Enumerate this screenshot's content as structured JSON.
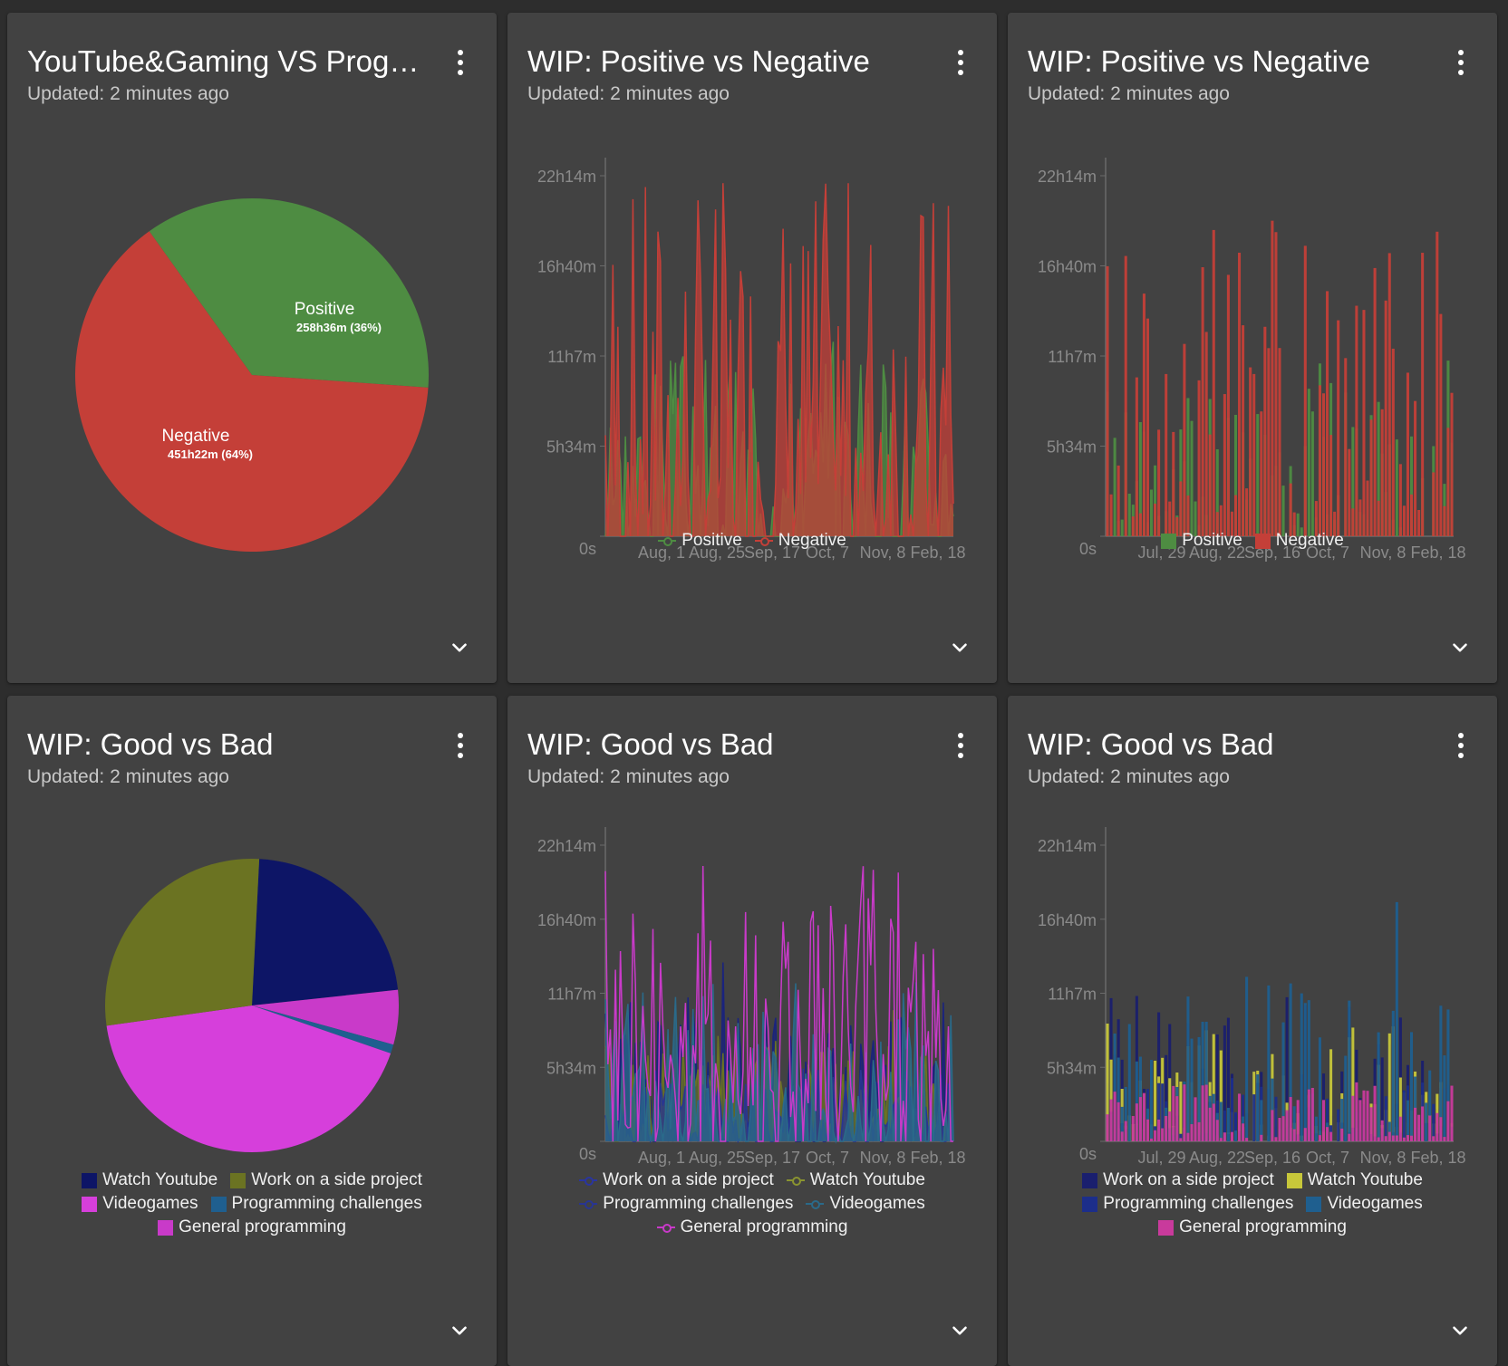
{
  "cards": [
    {
      "title": "YouTube&Gaming VS Progra...",
      "updated": "Updated: 2 minutes ago",
      "chart_kind": "pie",
      "pie_labels": [
        {
          "name": "Positive",
          "value": "258h36m (36%)"
        },
        {
          "name": "Negative",
          "value": "451h22m (64%)"
        }
      ],
      "chart_data": {
        "type": "pie",
        "slices": [
          {
            "name": "Positive",
            "value": 36,
            "color": "#4e8c42"
          },
          {
            "name": "Negative",
            "value": 64,
            "color": "#c43f38"
          }
        ]
      },
      "legend": []
    },
    {
      "title": "WIP: Positive vs Negative",
      "updated": "Updated: 2 minutes ago",
      "chart_kind": "area",
      "chart_data": {
        "type": "area",
        "x_ticks": [
          "Aug, 1",
          "Aug, 25",
          "Sep, 17",
          "Oct, 7",
          "Nov, 8",
          "Feb, 18"
        ],
        "y_ticks": [
          "0s",
          "5h34m",
          "11h7m",
          "16h40m",
          "22h14m"
        ],
        "ylim": [
          0,
          24
        ],
        "series": [
          {
            "name": "Positive",
            "color": "#4e8c42",
            "seed": 3,
            "scale": 0.55
          },
          {
            "name": "Negative",
            "color": "#c43f38",
            "seed": 7,
            "scale": 1.0
          }
        ]
      },
      "legend": [
        {
          "label": "Positive",
          "color": "#4e8c42",
          "style": "line"
        },
        {
          "label": "Negative",
          "color": "#c43f38",
          "style": "line"
        }
      ]
    },
    {
      "title": "WIP: Positive vs Negative",
      "updated": "Updated: 2 minutes ago",
      "chart_kind": "bar",
      "chart_data": {
        "type": "bar",
        "x_ticks": [
          "Jul, 29",
          "Aug, 22",
          "Sep, 16",
          "Oct, 7",
          "Nov, 8",
          "Feb, 18"
        ],
        "y_ticks": [
          "0s",
          "5h34m",
          "11h7m",
          "16h40m",
          "22h14m"
        ],
        "ylim": [
          0,
          24
        ],
        "series": [
          {
            "name": "Positive",
            "color": "#4e8c42",
            "seed": 11,
            "scale": 0.5
          },
          {
            "name": "Negative",
            "color": "#c43f38",
            "seed": 17,
            "scale": 0.9
          }
        ]
      },
      "legend": [
        {
          "label": "Positive",
          "color": "#4e8c42",
          "style": "box"
        },
        {
          "label": "Negative",
          "color": "#c43f38",
          "style": "box"
        }
      ]
    },
    {
      "title": "WIP: Good vs Bad",
      "updated": "Updated: 2 minutes ago",
      "chart_kind": "pie",
      "pie_labels": [],
      "chart_data": {
        "type": "pie",
        "slices": [
          {
            "name": "Watch Youtube",
            "value": 22.5,
            "color": "#0d1566"
          },
          {
            "name": "General programming",
            "value": 6.0,
            "color": "#c93ac9"
          },
          {
            "name": "Programming challenges",
            "value": 1.0,
            "color": "#1f5f8f"
          },
          {
            "name": "Videogames",
            "value": 42.5,
            "color": "#d63fdb"
          },
          {
            "name": "Work on a side project",
            "value": 28.0,
            "color": "#6b7322"
          }
        ]
      },
      "legend": [
        {
          "label": "Watch Youtube",
          "color": "#0d1566",
          "style": "box"
        },
        {
          "label": "Work on a side project",
          "color": "#6b7322",
          "style": "box"
        },
        {
          "label": "Videogames",
          "color": "#d63fdb",
          "style": "box"
        },
        {
          "label": "Programming challenges",
          "color": "#1f5f8f",
          "style": "box"
        },
        {
          "label": "General programming",
          "color": "#c93ac9",
          "style": "box"
        }
      ]
    },
    {
      "title": "WIP: Good vs Bad",
      "updated": "Updated: 2 minutes ago",
      "chart_kind": "area",
      "chart_data": {
        "type": "area",
        "x_ticks": [
          "Aug, 1",
          "Aug, 25",
          "Sep, 17",
          "Oct, 7",
          "Nov, 8",
          "Feb, 18"
        ],
        "y_ticks": [
          "0s",
          "5h34m",
          "11h7m",
          "16h40m",
          "22h14m"
        ],
        "ylim": [
          0,
          24
        ],
        "series": [
          {
            "name": "Work on a side project",
            "color": "#1a237e",
            "seed": 23,
            "scale": 0.5
          },
          {
            "name": "Watch Youtube",
            "color": "#6b7322",
            "seed": 29,
            "scale": 0.35
          },
          {
            "name": "Programming challenges",
            "color": "#283593",
            "seed": 31,
            "scale": 0.25
          },
          {
            "name": "Videogames",
            "color": "#2a6a8a",
            "seed": 37,
            "scale": 0.55
          },
          {
            "name": "General programming",
            "color": "#c93ac9",
            "seed": 41,
            "scale": 0.95,
            "line_only": true
          }
        ]
      },
      "legend": [
        {
          "label": "Work on a side project",
          "color": "#2a35a0",
          "style": "line"
        },
        {
          "label": "Watch Youtube",
          "color": "#8a9430",
          "style": "line"
        },
        {
          "label": "Programming challenges",
          "color": "#283593",
          "style": "line"
        },
        {
          "label": "Videogames",
          "color": "#2a6a8a",
          "style": "line"
        },
        {
          "label": "General programming",
          "color": "#c93ac9",
          "style": "line"
        }
      ]
    },
    {
      "title": "WIP: Good vs Bad",
      "updated": "Updated: 2 minutes ago",
      "chart_kind": "bar",
      "chart_data": {
        "type": "bar",
        "x_ticks": [
          "Jul, 29",
          "Aug, 22",
          "Sep, 16",
          "Oct, 7",
          "Nov, 8",
          "Feb, 18"
        ],
        "y_ticks": [
          "0s",
          "5h34m",
          "11h7m",
          "16h40m",
          "22h14m"
        ],
        "ylim": [
          0,
          24
        ],
        "series": [
          {
            "name": "Work on a side project",
            "color": "#1a1f6e",
            "seed": 43,
            "scale": 0.5
          },
          {
            "name": "Watch Youtube",
            "color": "#c7c73a",
            "seed": 47,
            "scale": 0.4
          },
          {
            "name": "Programming challenges",
            "color": "#1c2e8a",
            "seed": 53,
            "scale": 0.2
          },
          {
            "name": "Videogames",
            "color": "#1f5f8f",
            "seed": 59,
            "scale": 0.6
          },
          {
            "name": "General programming",
            "color": "#c93a9c",
            "seed": 61,
            "scale": 0.2
          }
        ]
      },
      "legend": [
        {
          "label": "Work on a side project",
          "color": "#1a1f6e",
          "style": "box"
        },
        {
          "label": "Watch Youtube",
          "color": "#c7c73a",
          "style": "box"
        },
        {
          "label": "Programming challenges",
          "color": "#1c2e8a",
          "style": "box"
        },
        {
          "label": "Videogames",
          "color": "#1f5f8f",
          "style": "box"
        },
        {
          "label": "General programming",
          "color": "#c93a9c",
          "style": "box"
        }
      ]
    }
  ]
}
